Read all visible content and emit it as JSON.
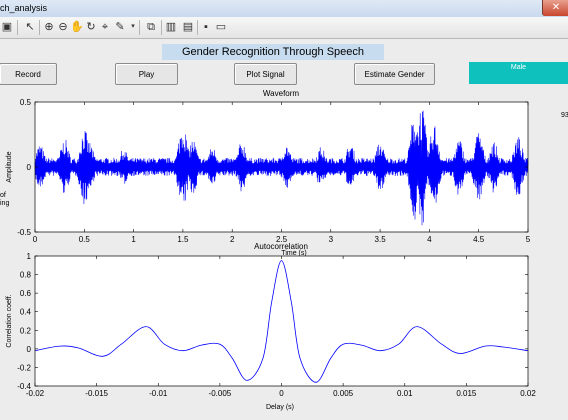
{
  "window": {
    "title": "ch_analysis",
    "close_symbol": "✕"
  },
  "toolbar": {
    "icons": [
      "new-icon",
      "open-icon",
      "print-icon",
      "pointer-icon",
      "zoom-in-icon",
      "zoom-out-icon",
      "pan-icon",
      "rotate-icon",
      "data-cursor-icon",
      "brush-icon",
      "link-icon",
      "colorbar-icon",
      "legend-icon",
      "hide-tools-icon",
      "dock-icon"
    ]
  },
  "app": {
    "title": "Gender Recognition Through Speech",
    "buttons": {
      "record": "Record",
      "play": "Play",
      "plot_signal": "Plot Signal",
      "estimate_gender": "Estimate Gender"
    },
    "result": "Male",
    "result_color": "#0ec1bd",
    "side_value": "93",
    "side_left_1": "of",
    "side_left_2": "ing"
  },
  "chart_data": [
    {
      "type": "line",
      "title": "Waveform",
      "xlabel": "Time (s)",
      "ylabel": "Amplitude",
      "xlim": [
        0,
        5
      ],
      "ylim": [
        -0.5,
        0.5
      ],
      "xticks": [
        "0",
        "0.5",
        "1",
        "1.5",
        "2",
        "2.5",
        "3",
        "3.5",
        "4",
        "4.5",
        "5"
      ],
      "yticks": [
        "-0.5",
        "0",
        "0.5"
      ],
      "series": [
        {
          "color": "#0000ff",
          "description": "speech signal waveform, dense oscillation about 0 with peaks near 0.45 at 3.9–4.1 s"
        }
      ]
    },
    {
      "type": "line",
      "title": "Autocorrelation",
      "xlabel": "Delay (s)",
      "ylabel": "Correlation coeff.",
      "xlim": [
        -0.02,
        0.02
      ],
      "ylim": [
        -0.4,
        1
      ],
      "xticks": [
        "-0.02",
        "-0.015",
        "-0.01",
        "-0.005",
        "0",
        "0.005",
        "0.01",
        "0.015",
        "0.02"
      ],
      "yticks": [
        "-0.4",
        "-0.2",
        "0",
        "0.2",
        "0.4",
        "0.6",
        "0.8",
        "1"
      ],
      "series": [
        {
          "color": "#0000ff",
          "x": [
            -0.02,
            -0.018,
            -0.0165,
            -0.0145,
            -0.013,
            -0.011,
            -0.0095,
            -0.008,
            -0.0065,
            -0.005,
            -0.004,
            -0.0028,
            -0.0015,
            -0.0008,
            0,
            0.0008,
            0.0015,
            0.0028,
            0.004,
            0.005,
            0.0065,
            0.008,
            0.0095,
            0.011,
            0.013,
            0.0145,
            0.0165,
            0.018,
            0.02
          ],
          "y": [
            -0.02,
            0.03,
            0.01,
            -0.08,
            0.05,
            0.24,
            0.05,
            -0.02,
            0.04,
            0.05,
            -0.1,
            -0.34,
            -0.1,
            0.5,
            0.95,
            0.5,
            -0.1,
            -0.36,
            -0.1,
            0.05,
            0.04,
            -0.02,
            0.05,
            0.24,
            0.05,
            -0.05,
            0.03,
            0.02,
            -0.02
          ]
        }
      ]
    }
  ]
}
